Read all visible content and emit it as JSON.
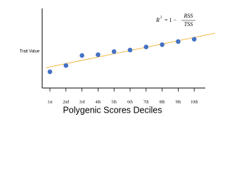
{
  "chart_data": {
    "type": "scatter",
    "x_label": "Polygenic Scores Deciles",
    "y_label": "Trait Value",
    "categories": [
      "1st",
      "2nd",
      "3rd",
      "4th",
      "5th",
      "6th",
      "7th",
      "8th",
      "9th",
      "10th"
    ],
    "values": [
      21,
      29,
      42,
      43,
      47,
      49,
      53,
      56,
      60,
      63
    ],
    "color": "#4472c4",
    "trendline": true,
    "trendline_color": "#f2b233",
    "ylim": [
      0,
      100
    ],
    "annotation": {
      "lhs": "R",
      "exp": "2",
      "rhs": "= 1 −",
      "numerator": "RSS",
      "denominator": "TSS"
    }
  }
}
